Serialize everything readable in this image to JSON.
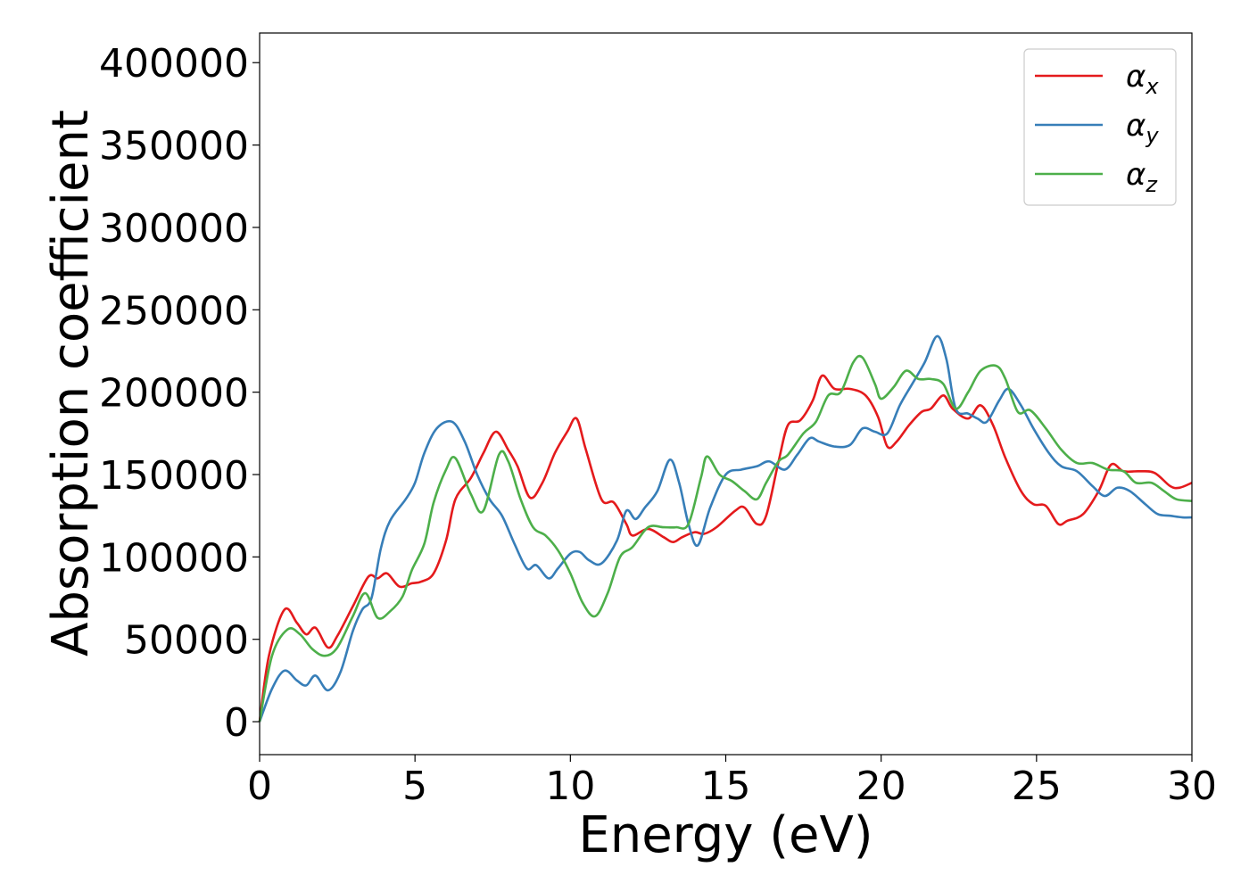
{
  "chart_data": {
    "type": "line",
    "xlabel": "Energy (eV)",
    "ylabel": "Absorption coefficient",
    "xlim": [
      0,
      30
    ],
    "ylim": [
      -20000,
      418000
    ],
    "xticks": [
      0,
      5,
      10,
      15,
      20,
      25,
      30
    ],
    "yticks": [
      0,
      50000,
      100000,
      150000,
      200000,
      250000,
      300000,
      350000,
      400000
    ],
    "grid": false,
    "legend_position": "top-right",
    "series": [
      {
        "name": "α",
        "subscript": "x",
        "color": "#e41a1c",
        "points": [
          [
            0,
            0
          ],
          [
            0.3,
            40000
          ],
          [
            0.8,
            68000
          ],
          [
            1.2,
            60000
          ],
          [
            1.5,
            53000
          ],
          [
            1.8,
            57000
          ],
          [
            2.2,
            45000
          ],
          [
            2.5,
            52000
          ],
          [
            3.0,
            70000
          ],
          [
            3.5,
            88000
          ],
          [
            3.8,
            87000
          ],
          [
            4.1,
            90000
          ],
          [
            4.5,
            82000
          ],
          [
            4.9,
            84000
          ],
          [
            5.2,
            85000
          ],
          [
            5.6,
            90000
          ],
          [
            6.0,
            110000
          ],
          [
            6.3,
            135000
          ],
          [
            6.8,
            148000
          ],
          [
            7.2,
            163000
          ],
          [
            7.6,
            176000
          ],
          [
            8.0,
            165000
          ],
          [
            8.3,
            155000
          ],
          [
            8.7,
            136000
          ],
          [
            9.1,
            145000
          ],
          [
            9.5,
            163000
          ],
          [
            9.9,
            176000
          ],
          [
            10.2,
            184000
          ],
          [
            10.5,
            165000
          ],
          [
            11.0,
            135000
          ],
          [
            11.4,
            133000
          ],
          [
            11.8,
            120000
          ],
          [
            12.0,
            113000
          ],
          [
            12.5,
            117000
          ],
          [
            13.0,
            112000
          ],
          [
            13.3,
            109000
          ],
          [
            13.6,
            112000
          ],
          [
            14.0,
            115000
          ],
          [
            14.3,
            114000
          ],
          [
            14.7,
            118000
          ],
          [
            15.3,
            128000
          ],
          [
            15.6,
            130000
          ],
          [
            16.0,
            120000
          ],
          [
            16.3,
            125000
          ],
          [
            16.7,
            158000
          ],
          [
            17.0,
            180000
          ],
          [
            17.4,
            183000
          ],
          [
            17.8,
            195000
          ],
          [
            18.1,
            210000
          ],
          [
            18.5,
            202000
          ],
          [
            19.0,
            202000
          ],
          [
            19.5,
            198000
          ],
          [
            19.9,
            185000
          ],
          [
            20.2,
            167000
          ],
          [
            20.5,
            170000
          ],
          [
            20.9,
            180000
          ],
          [
            21.3,
            188000
          ],
          [
            21.6,
            190000
          ],
          [
            22.0,
            198000
          ],
          [
            22.3,
            190000
          ],
          [
            22.8,
            184000
          ],
          [
            23.2,
            192000
          ],
          [
            23.6,
            180000
          ],
          [
            24.0,
            160000
          ],
          [
            24.5,
            140000
          ],
          [
            24.9,
            132000
          ],
          [
            25.3,
            131000
          ],
          [
            25.7,
            120000
          ],
          [
            26.0,
            122000
          ],
          [
            26.5,
            126000
          ],
          [
            27.0,
            140000
          ],
          [
            27.4,
            156000
          ],
          [
            27.8,
            152000
          ],
          [
            28.3,
            152000
          ],
          [
            28.8,
            151000
          ],
          [
            29.3,
            143000
          ],
          [
            29.6,
            142000
          ],
          [
            30.0,
            145000
          ]
        ]
      },
      {
        "name": "α",
        "subscript": "y",
        "color": "#377eb8",
        "points": [
          [
            0,
            0
          ],
          [
            0.4,
            20000
          ],
          [
            0.8,
            31000
          ],
          [
            1.2,
            25000
          ],
          [
            1.5,
            22000
          ],
          [
            1.8,
            28000
          ],
          [
            2.2,
            19000
          ],
          [
            2.6,
            30000
          ],
          [
            3.0,
            55000
          ],
          [
            3.3,
            68000
          ],
          [
            3.6,
            75000
          ],
          [
            3.9,
            105000
          ],
          [
            4.2,
            122000
          ],
          [
            4.7,
            135000
          ],
          [
            5.0,
            145000
          ],
          [
            5.3,
            163000
          ],
          [
            5.7,
            178000
          ],
          [
            6.2,
            182000
          ],
          [
            6.6,
            170000
          ],
          [
            7.0,
            150000
          ],
          [
            7.4,
            135000
          ],
          [
            7.8,
            125000
          ],
          [
            8.2,
            108000
          ],
          [
            8.6,
            93000
          ],
          [
            8.9,
            95000
          ],
          [
            9.3,
            87000
          ],
          [
            9.6,
            93000
          ],
          [
            10.0,
            102000
          ],
          [
            10.3,
            103000
          ],
          [
            10.6,
            98000
          ],
          [
            11.0,
            96000
          ],
          [
            11.5,
            110000
          ],
          [
            11.8,
            128000
          ],
          [
            12.1,
            123000
          ],
          [
            12.4,
            130000
          ],
          [
            12.8,
            140000
          ],
          [
            13.2,
            159000
          ],
          [
            13.5,
            145000
          ],
          [
            13.8,
            120000
          ],
          [
            14.1,
            107000
          ],
          [
            14.5,
            130000
          ],
          [
            15.0,
            150000
          ],
          [
            15.5,
            153000
          ],
          [
            16.0,
            155000
          ],
          [
            16.4,
            158000
          ],
          [
            16.9,
            153000
          ],
          [
            17.3,
            162000
          ],
          [
            17.7,
            172000
          ],
          [
            18.0,
            170000
          ],
          [
            18.5,
            167000
          ],
          [
            19.0,
            168000
          ],
          [
            19.4,
            178000
          ],
          [
            19.8,
            176000
          ],
          [
            20.2,
            175000
          ],
          [
            20.6,
            192000
          ],
          [
            21.0,
            205000
          ],
          [
            21.4,
            218000
          ],
          [
            21.8,
            234000
          ],
          [
            22.1,
            220000
          ],
          [
            22.4,
            190000
          ],
          [
            22.8,
            187000
          ],
          [
            23.1,
            184000
          ],
          [
            23.4,
            182000
          ],
          [
            23.8,
            195000
          ],
          [
            24.1,
            202000
          ],
          [
            24.5,
            192000
          ],
          [
            24.9,
            178000
          ],
          [
            25.4,
            163000
          ],
          [
            25.8,
            155000
          ],
          [
            26.3,
            152000
          ],
          [
            26.8,
            143000
          ],
          [
            27.2,
            137000
          ],
          [
            27.6,
            142000
          ],
          [
            28.0,
            140000
          ],
          [
            28.5,
            132000
          ],
          [
            28.9,
            126000
          ],
          [
            29.3,
            125000
          ],
          [
            29.7,
            124000
          ],
          [
            30.0,
            124000
          ]
        ]
      },
      {
        "name": "α",
        "subscript": "z",
        "color": "#4daf4a",
        "points": [
          [
            0,
            0
          ],
          [
            0.4,
            40000
          ],
          [
            0.9,
            56000
          ],
          [
            1.3,
            53000
          ],
          [
            1.7,
            44000
          ],
          [
            2.1,
            40000
          ],
          [
            2.5,
            45000
          ],
          [
            3.0,
            64000
          ],
          [
            3.4,
            78000
          ],
          [
            3.8,
            63000
          ],
          [
            4.2,
            67000
          ],
          [
            4.6,
            76000
          ],
          [
            4.9,
            92000
          ],
          [
            5.3,
            108000
          ],
          [
            5.6,
            133000
          ],
          [
            6.0,
            153000
          ],
          [
            6.3,
            160000
          ],
          [
            6.8,
            138000
          ],
          [
            7.2,
            128000
          ],
          [
            7.7,
            162000
          ],
          [
            8.0,
            158000
          ],
          [
            8.4,
            135000
          ],
          [
            8.8,
            118000
          ],
          [
            9.2,
            113000
          ],
          [
            9.6,
            104000
          ],
          [
            10.0,
            90000
          ],
          [
            10.4,
            72000
          ],
          [
            10.8,
            64000
          ],
          [
            11.2,
            78000
          ],
          [
            11.6,
            100000
          ],
          [
            12.0,
            106000
          ],
          [
            12.5,
            118000
          ],
          [
            13.0,
            118000
          ],
          [
            13.4,
            118000
          ],
          [
            13.8,
            120000
          ],
          [
            14.2,
            148000
          ],
          [
            14.4,
            161000
          ],
          [
            14.8,
            150000
          ],
          [
            15.2,
            146000
          ],
          [
            15.6,
            140000
          ],
          [
            16.0,
            135000
          ],
          [
            16.3,
            145000
          ],
          [
            16.7,
            158000
          ],
          [
            17.0,
            162000
          ],
          [
            17.5,
            175000
          ],
          [
            17.9,
            182000
          ],
          [
            18.3,
            198000
          ],
          [
            18.7,
            200000
          ],
          [
            19.1,
            218000
          ],
          [
            19.4,
            221000
          ],
          [
            19.8,
            205000
          ],
          [
            20.0,
            196000
          ],
          [
            20.4,
            203000
          ],
          [
            20.8,
            213000
          ],
          [
            21.2,
            208000
          ],
          [
            21.6,
            208000
          ],
          [
            22.0,
            205000
          ],
          [
            22.4,
            190000
          ],
          [
            22.8,
            200000
          ],
          [
            23.2,
            213000
          ],
          [
            23.7,
            216000
          ],
          [
            24.0,
            208000
          ],
          [
            24.4,
            188000
          ],
          [
            24.8,
            189000
          ],
          [
            25.3,
            178000
          ],
          [
            25.8,
            165000
          ],
          [
            26.3,
            157000
          ],
          [
            26.8,
            157000
          ],
          [
            27.3,
            153000
          ],
          [
            27.8,
            152000
          ],
          [
            28.2,
            145000
          ],
          [
            28.7,
            145000
          ],
          [
            29.1,
            140000
          ],
          [
            29.5,
            135000
          ],
          [
            30.0,
            134000
          ]
        ]
      }
    ]
  }
}
